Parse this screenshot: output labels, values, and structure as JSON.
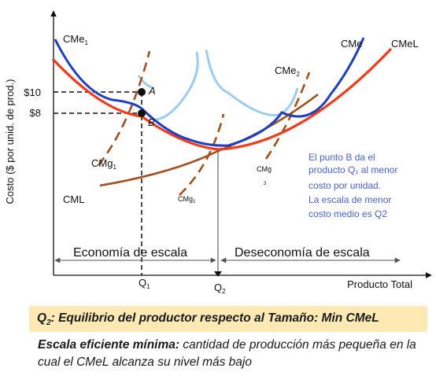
{
  "y_axis_label": "Costo ($ por unid. de prod.)",
  "x_axis_label": "Producto Total",
  "price_labels": {
    "high": "$10",
    "low": "$8"
  },
  "q_labels": {
    "q1": "Q",
    "q1_sub": "1",
    "q2": "Q",
    "q2_sub": "2"
  },
  "point_labels": {
    "a": "A",
    "b": "B"
  },
  "curve_labels": {
    "cme1": "CMe",
    "cme1_sub": "1",
    "cme2": "CMe",
    "cme2_sub": "2",
    "cme": "CMe",
    "cmel": "CMeL",
    "cmg1": "CMg",
    "cmg1_sub": "1",
    "cmg2": "CMg",
    "cmg2_sub": "2",
    "cmg3": "CMg",
    "cmg3_sub": "3",
    "cml": "CML"
  },
  "regions": {
    "left": "Economía de escala",
    "right": "Deseconomía de escala"
  },
  "annotation_lines": [
    "El punto B  da el",
    "producto Q₁ al menor",
    "costo por unidad.",
    "La escala de menor",
    "costo medio es Q2"
  ],
  "banner": {
    "q": "Q",
    "q_sub": "2",
    "text": ": Equilibrio del productor respecto al Tamaño: Min CMeL"
  },
  "note": {
    "term": "Escala eficiente mínima:",
    "definition": " cantidad de producción más pequeña en la cual el CMeL  alcanza su nivel más bajo"
  },
  "colors": {
    "cmel": "#f03c1a",
    "cme": "#1f3fc0",
    "cme_light": "#9ccdf0",
    "cmg": "#a3501c",
    "cml": "#a3501c",
    "annotation": "#4a63c8",
    "banner_bg": "#fde9b4"
  }
}
